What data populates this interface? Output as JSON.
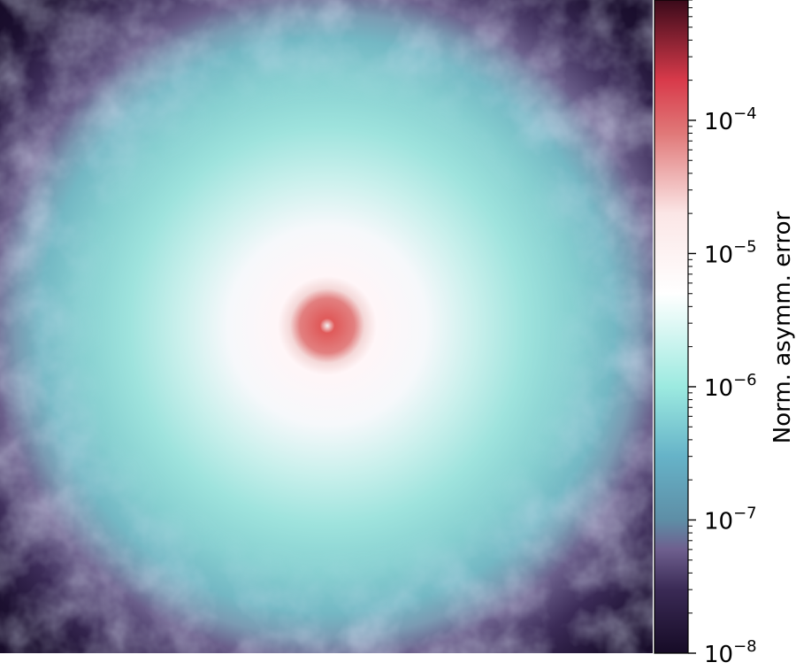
{
  "chart_data": {
    "type": "heatmap",
    "title": "",
    "xlabel": "",
    "ylabel": "",
    "colorbar": {
      "label": "Norm. asymm. error",
      "scale": "log",
      "range": [
        1e-08,
        0.0008
      ],
      "ticks": [
        {
          "value": 1e-08,
          "base": "10",
          "exp": "−8"
        },
        {
          "value": 1e-07,
          "base": "10",
          "exp": "−7"
        },
        {
          "value": 1e-06,
          "base": "10",
          "exp": "−6"
        },
        {
          "value": 1e-05,
          "base": "10",
          "exp": "−5"
        },
        {
          "value": 0.0001,
          "base": "10",
          "exp": "−4"
        }
      ],
      "colormap": [
        {
          "value": 1e-08,
          "color": "#160b26"
        },
        {
          "value": 3e-08,
          "color": "#3a2a55"
        },
        {
          "value": 6e-08,
          "color": "#6e5f8e"
        },
        {
          "value": 1e-07,
          "color": "#5e8ea6"
        },
        {
          "value": 3e-07,
          "color": "#66b3c8"
        },
        {
          "value": 1e-06,
          "color": "#9ceae0"
        },
        {
          "value": 5e-06,
          "color": "#ffffff"
        },
        {
          "value": 2e-05,
          "color": "#fbe6e6"
        },
        {
          "value": 8e-05,
          "color": "#e07878"
        },
        {
          "value": 0.0002,
          "color": "#d83a4a"
        },
        {
          "value": 0.0008,
          "color": "#3a0a1a"
        }
      ]
    },
    "image": {
      "description_of_pattern": "radial",
      "center_value": 0.0001,
      "edge_value": 1e-08
    }
  }
}
